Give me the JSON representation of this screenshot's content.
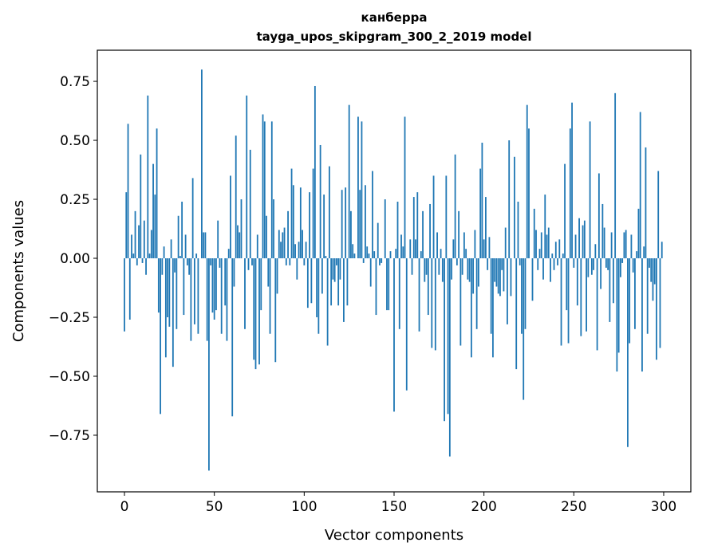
{
  "chart_data": {
    "type": "bar",
    "title": [
      "канберра",
      "tayga_upos_skipgram_300_2_2019 model"
    ],
    "xlabel": "Vector components",
    "ylabel": "Components values",
    "xlim": [
      -15.1,
      315.1
    ],
    "ylim": [
      -0.99,
      0.882
    ],
    "xticks": [
      0,
      50,
      100,
      150,
      200,
      250,
      300
    ],
    "xtick_labels": [
      "0",
      "50",
      "100",
      "150",
      "200",
      "250",
      "300"
    ],
    "yticks": [
      -0.75,
      -0.5,
      -0.25,
      0,
      0.25,
      0.5,
      0.75
    ],
    "ytick_labels": [
      "−0.75",
      "−0.50",
      "−0.25",
      "0.00",
      "0.25",
      "0.50",
      "0.75"
    ],
    "grid": false,
    "bar_color": "#1f77b4",
    "values": [
      -0.31,
      0.28,
      0.57,
      -0.26,
      0.1,
      0.02,
      0.2,
      -0.03,
      0.14,
      0.44,
      -0.02,
      0.16,
      -0.07,
      0.69,
      0.02,
      0.12,
      0.4,
      0.27,
      0.55,
      -0.23,
      -0.66,
      -0.07,
      0.05,
      -0.42,
      -0.25,
      -0.29,
      0.08,
      -0.46,
      -0.06,
      -0.3,
      0.18,
      0.01,
      0.24,
      -0.24,
      0.1,
      -0.03,
      -0.07,
      -0.35,
      0.34,
      -0.28,
      0.02,
      -0.32,
      0.0,
      0.8,
      0.11,
      0.11,
      -0.35,
      -0.9,
      -0.03,
      -0.23,
      -0.26,
      -0.22,
      0.16,
      -0.04,
      -0.32,
      0.0,
      -0.2,
      -0.35,
      0.04,
      0.35,
      -0.67,
      -0.12,
      0.52,
      0.14,
      0.11,
      0.25,
      0.0,
      -0.3,
      0.69,
      -0.05,
      0.46,
      -0.03,
      -0.43,
      -0.47,
      0.1,
      -0.45,
      -0.22,
      0.61,
      0.58,
      0.18,
      -0.12,
      -0.32,
      0.58,
      0.25,
      -0.44,
      -0.15,
      0.12,
      0.07,
      0.11,
      0.13,
      -0.03,
      0.2,
      -0.03,
      0.38,
      0.31,
      0.06,
      -0.09,
      0.07,
      0.3,
      0.12,
      -0.03,
      0.07,
      -0.21,
      0.28,
      -0.19,
      0.38,
      0.73,
      -0.25,
      -0.32,
      0.48,
      -0.15,
      0.27,
      0.01,
      -0.37,
      0.39,
      -0.2,
      -0.09,
      -0.1,
      -0.03,
      -0.2,
      -0.09,
      0.29,
      -0.27,
      0.3,
      -0.2,
      0.65,
      0.2,
      0.06,
      0.02,
      0.0,
      0.6,
      0.29,
      0.58,
      -0.02,
      0.31,
      0.05,
      0.02,
      -0.12,
      0.37,
      0.03,
      -0.24,
      0.15,
      -0.03,
      -0.02,
      0.0,
      0.25,
      -0.22,
      -0.22,
      0.03,
      0.0,
      -0.65,
      0.04,
      0.24,
      -0.3,
      0.1,
      0.05,
      0.6,
      -0.56,
      0.0,
      0.08,
      -0.07,
      0.26,
      0.08,
      0.28,
      -0.31,
      0.03,
      0.2,
      -0.1,
      -0.07,
      -0.24,
      0.23,
      -0.38,
      0.35,
      -0.39,
      0.11,
      -0.07,
      0.04,
      -0.1,
      -0.69,
      0.35,
      -0.66,
      -0.84,
      -0.09,
      0.08,
      0.44,
      -0.03,
      0.2,
      -0.37,
      -0.07,
      0.11,
      0.04,
      -0.09,
      -0.1,
      -0.42,
      -0.15,
      0.12,
      -0.3,
      -0.12,
      0.38,
      0.49,
      0.08,
      0.26,
      -0.05,
      0.09,
      -0.32,
      -0.42,
      -0.1,
      -0.12,
      -0.15,
      -0.16,
      -0.05,
      -0.14,
      0.13,
      -0.28,
      0.5,
      -0.16,
      0.0,
      0.43,
      -0.47,
      0.24,
      -0.03,
      -0.32,
      -0.6,
      -0.3,
      0.65,
      0.55,
      0.0,
      -0.18,
      0.21,
      0.12,
      -0.05,
      0.04,
      0.11,
      -0.09,
      0.27,
      0.1,
      0.13,
      -0.1,
      0.02,
      -0.05,
      0.07,
      -0.03,
      0.08,
      -0.37,
      0.02,
      0.4,
      -0.22,
      -0.36,
      0.55,
      0.66,
      -0.04,
      0.1,
      -0.2,
      0.17,
      -0.33,
      0.14,
      0.16,
      -0.31,
      -0.08,
      0.58,
      -0.07,
      -0.05,
      0.06,
      -0.39,
      0.36,
      -0.13,
      0.23,
      0.13,
      -0.04,
      -0.05,
      -0.27,
      0.11,
      -0.19,
      0.7,
      -0.48,
      -0.4,
      -0.08,
      -0.02,
      0.11,
      0.12,
      -0.8,
      -0.36,
      0.1,
      -0.06,
      -0.3,
      0.03,
      0.21,
      0.62,
      -0.48,
      0.05,
      0.47,
      -0.32,
      -0.04,
      -0.1,
      -0.18,
      -0.11,
      -0.43,
      0.37,
      -0.38,
      0.07
    ]
  }
}
